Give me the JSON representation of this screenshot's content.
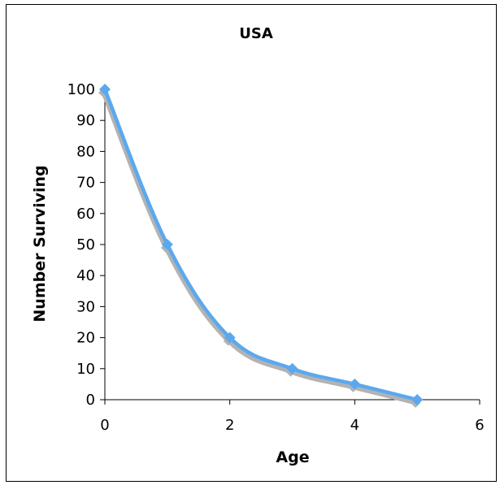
{
  "chart_data": {
    "type": "line",
    "title": "USA",
    "xlabel": "Age",
    "ylabel": "Number Surviving",
    "xlim": [
      0,
      6
    ],
    "ylim": [
      0,
      100
    ],
    "x_ticks": [
      "0",
      "2",
      "4",
      "6"
    ],
    "y_ticks": [
      "0",
      "10",
      "20",
      "30",
      "40",
      "50",
      "60",
      "70",
      "80",
      "90",
      "100"
    ],
    "grid": false,
    "legend": "none",
    "series": [
      {
        "x": [
          0,
          1,
          2,
          3,
          4,
          5
        ],
        "values": [
          100,
          50,
          20,
          10,
          5,
          0
        ],
        "color": "#5aa9ef",
        "shadow_color": "#b3b3b3",
        "marker": "diamond"
      }
    ]
  }
}
